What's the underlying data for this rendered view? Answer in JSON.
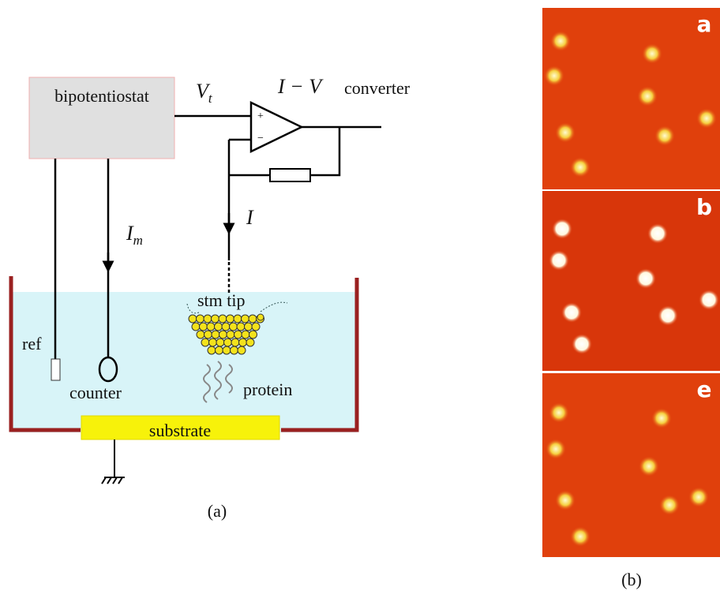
{
  "panel_a": {
    "box_label": "bipotentiostat",
    "voltage_label": {
      "base": "V",
      "sub": "t"
    },
    "converter_math": "I − V",
    "converter_text": "converter",
    "current_label": "I",
    "counter_current_label": {
      "base": "I",
      "sub": "m"
    },
    "tip_label": "stm tip",
    "ref_label": "ref",
    "counter_label": "counter",
    "protein_label": "protein",
    "substrate_label": "substrate",
    "caption": "(a)"
  },
  "panel_b": {
    "image_labels": [
      "a",
      "b",
      "e"
    ],
    "caption": "(b)"
  }
}
